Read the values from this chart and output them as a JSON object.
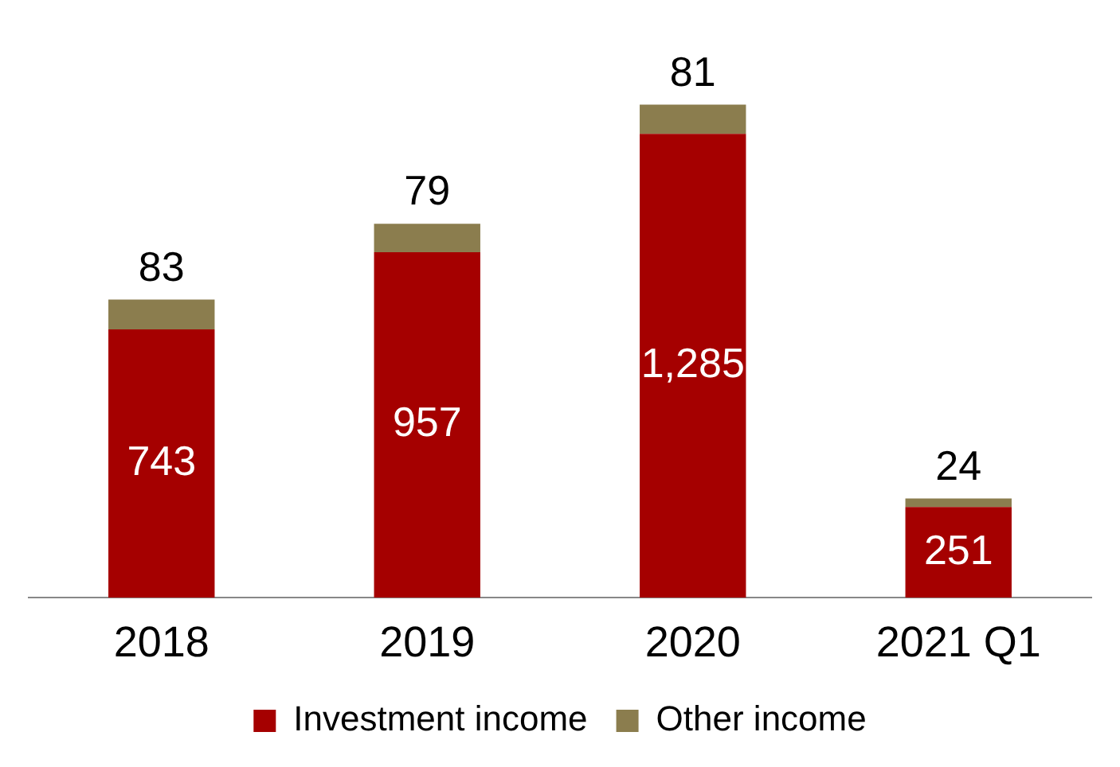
{
  "chart_data": {
    "type": "bar",
    "stacked": true,
    "categories": [
      "2018",
      "2019",
      "2020",
      "2021 Q1"
    ],
    "series": [
      {
        "name": "Investment income",
        "color": "#a50000",
        "values": [
          743,
          957,
          1285,
          251
        ],
        "value_labels": [
          "743",
          "957",
          "1,285",
          "251"
        ]
      },
      {
        "name": "Other income",
        "color": "#8b7d4e",
        "values": [
          83,
          79,
          81,
          24
        ]
      }
    ],
    "data_labels": true,
    "legend": "bottom",
    "grid": false
  }
}
